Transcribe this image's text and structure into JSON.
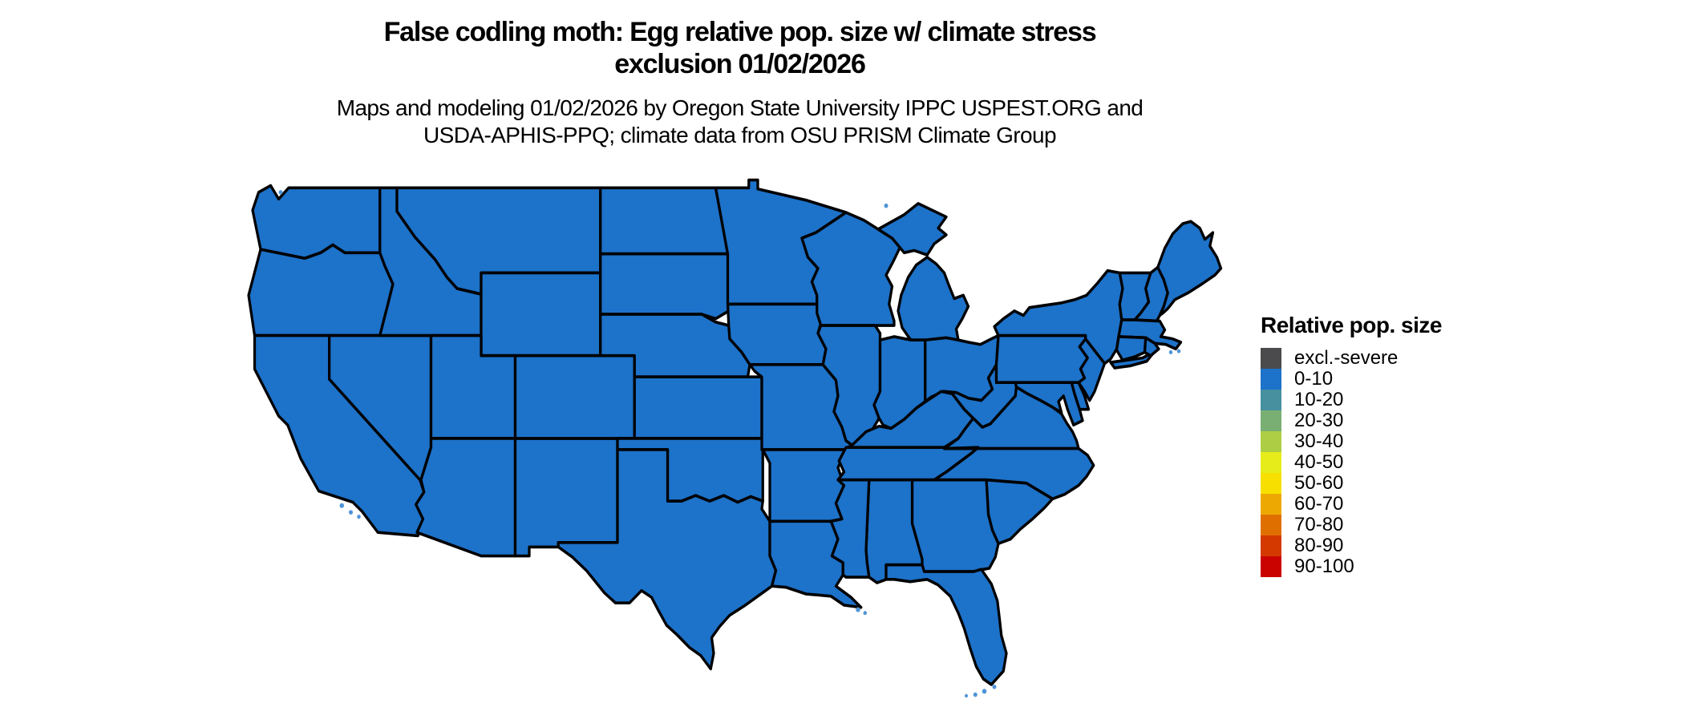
{
  "header": {
    "title_line1": "False codling moth: Egg relative pop. size w/ climate stress",
    "title_line2": "exclusion 01/02/2026",
    "subtitle_line1": "Maps and modeling 01/02/2026 by Oregon State University IPPC USPEST.ORG and",
    "subtitle_line2": "USDA-APHIS-PPQ; climate data from OSU PRISM Climate Group"
  },
  "legend": {
    "title": "Relative pop. size",
    "items": [
      {
        "label": "excl.-severe",
        "color": "#4b4b4d"
      },
      {
        "label": "0-10",
        "color": "#1d72c9"
      },
      {
        "label": "10-20",
        "color": "#47909f"
      },
      {
        "label": "20-30",
        "color": "#79af72"
      },
      {
        "label": "30-40",
        "color": "#adce44"
      },
      {
        "label": "40-50",
        "color": "#e6ec1a"
      },
      {
        "label": "50-60",
        "color": "#f7e000"
      },
      {
        "label": "60-70",
        "color": "#eda902"
      },
      {
        "label": "70-80",
        "color": "#df7000"
      },
      {
        "label": "80-90",
        "color": "#d43900"
      },
      {
        "label": "90-100",
        "color": "#cb0300"
      }
    ]
  },
  "map": {
    "depicts": "contiguous-united-states",
    "uniform_class": "0-10",
    "fill_color": "#1d72c9",
    "border_color": "#000000",
    "island_color": "#4f94d8",
    "background": "#ffffff"
  }
}
